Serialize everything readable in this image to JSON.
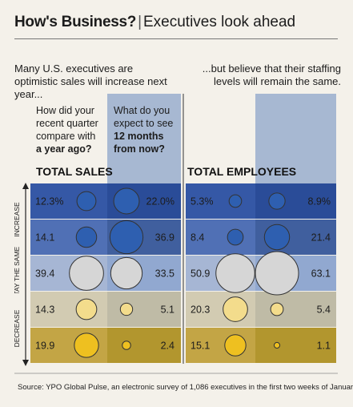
{
  "header": {
    "title_bold": "How's Business?",
    "title_rest": "Executives look ahead"
  },
  "intro": {
    "left": "Many U.S. executives are optimistic sales will increase next year...",
    "right": "...but believe that their staffing levels will remain the same."
  },
  "questions": {
    "past_lines": [
      "How did your",
      "recent quarter",
      "compare with"
    ],
    "past_bold": "a year ago?",
    "future_lines": [
      "What do you",
      "expect to see"
    ],
    "future_bold": [
      "12 months",
      "from now?"
    ]
  },
  "side_labels": {
    "increase": "INCREASE",
    "stay": "STAY THE SAME",
    "decrease": "DECREASE"
  },
  "colors": {
    "row_bg": [
      "#3558a6",
      "#5070b5",
      "#a6b6d4",
      "#d2cbb2",
      "#c3a545"
    ],
    "row_bg_future": [
      "#2a4c98",
      "#405f9e",
      "#91a8d0",
      "#bfbba6",
      "#b2962e"
    ],
    "bubble_fill": [
      "#2e5fb0",
      "#2e5fb0",
      "#d6d6d6",
      "#f3dc8c",
      "#eec020"
    ],
    "future_col_bg": "#a7b8d2"
  },
  "chart_data": {
    "type": "bubble-table",
    "unit": "%",
    "categories": [
      "Increase",
      "Increase",
      "Stay the same",
      "Decrease",
      "Decrease"
    ],
    "panels": [
      {
        "title": "TOTAL SALES",
        "series": [
          {
            "values": [
              12.3,
              14.1,
              39.4,
              14.3,
              19.9
            ]
          },
          {
            "values": [
              22.0,
              36.9,
              33.5,
              5.1,
              2.4
            ]
          }
        ],
        "labels": [
          [
            "12.3%",
            "22.0%"
          ],
          [
            "14.1",
            "36.9"
          ],
          [
            "39.4",
            "33.5"
          ],
          [
            "14.3",
            "5.1"
          ],
          [
            "19.9",
            "2.4"
          ]
        ]
      },
      {
        "title": "TOTAL EMPLOYEES",
        "series": [
          {
            "values": [
              5.3,
              8.4,
              50.9,
              20.3,
              15.1
            ]
          },
          {
            "values": [
              8.9,
              21.4,
              63.1,
              5.4,
              1.1
            ]
          }
        ],
        "labels": [
          [
            "5.3%",
            "8.9%"
          ],
          [
            "8.4",
            "21.4"
          ],
          [
            "50.9",
            "63.1"
          ],
          [
            "20.3",
            "5.4"
          ],
          [
            "15.1",
            "1.1"
          ]
        ]
      }
    ]
  },
  "source": "Source: YPO Global Pulse, an electronic survey of 1,086 executives in the first two weeks of January"
}
